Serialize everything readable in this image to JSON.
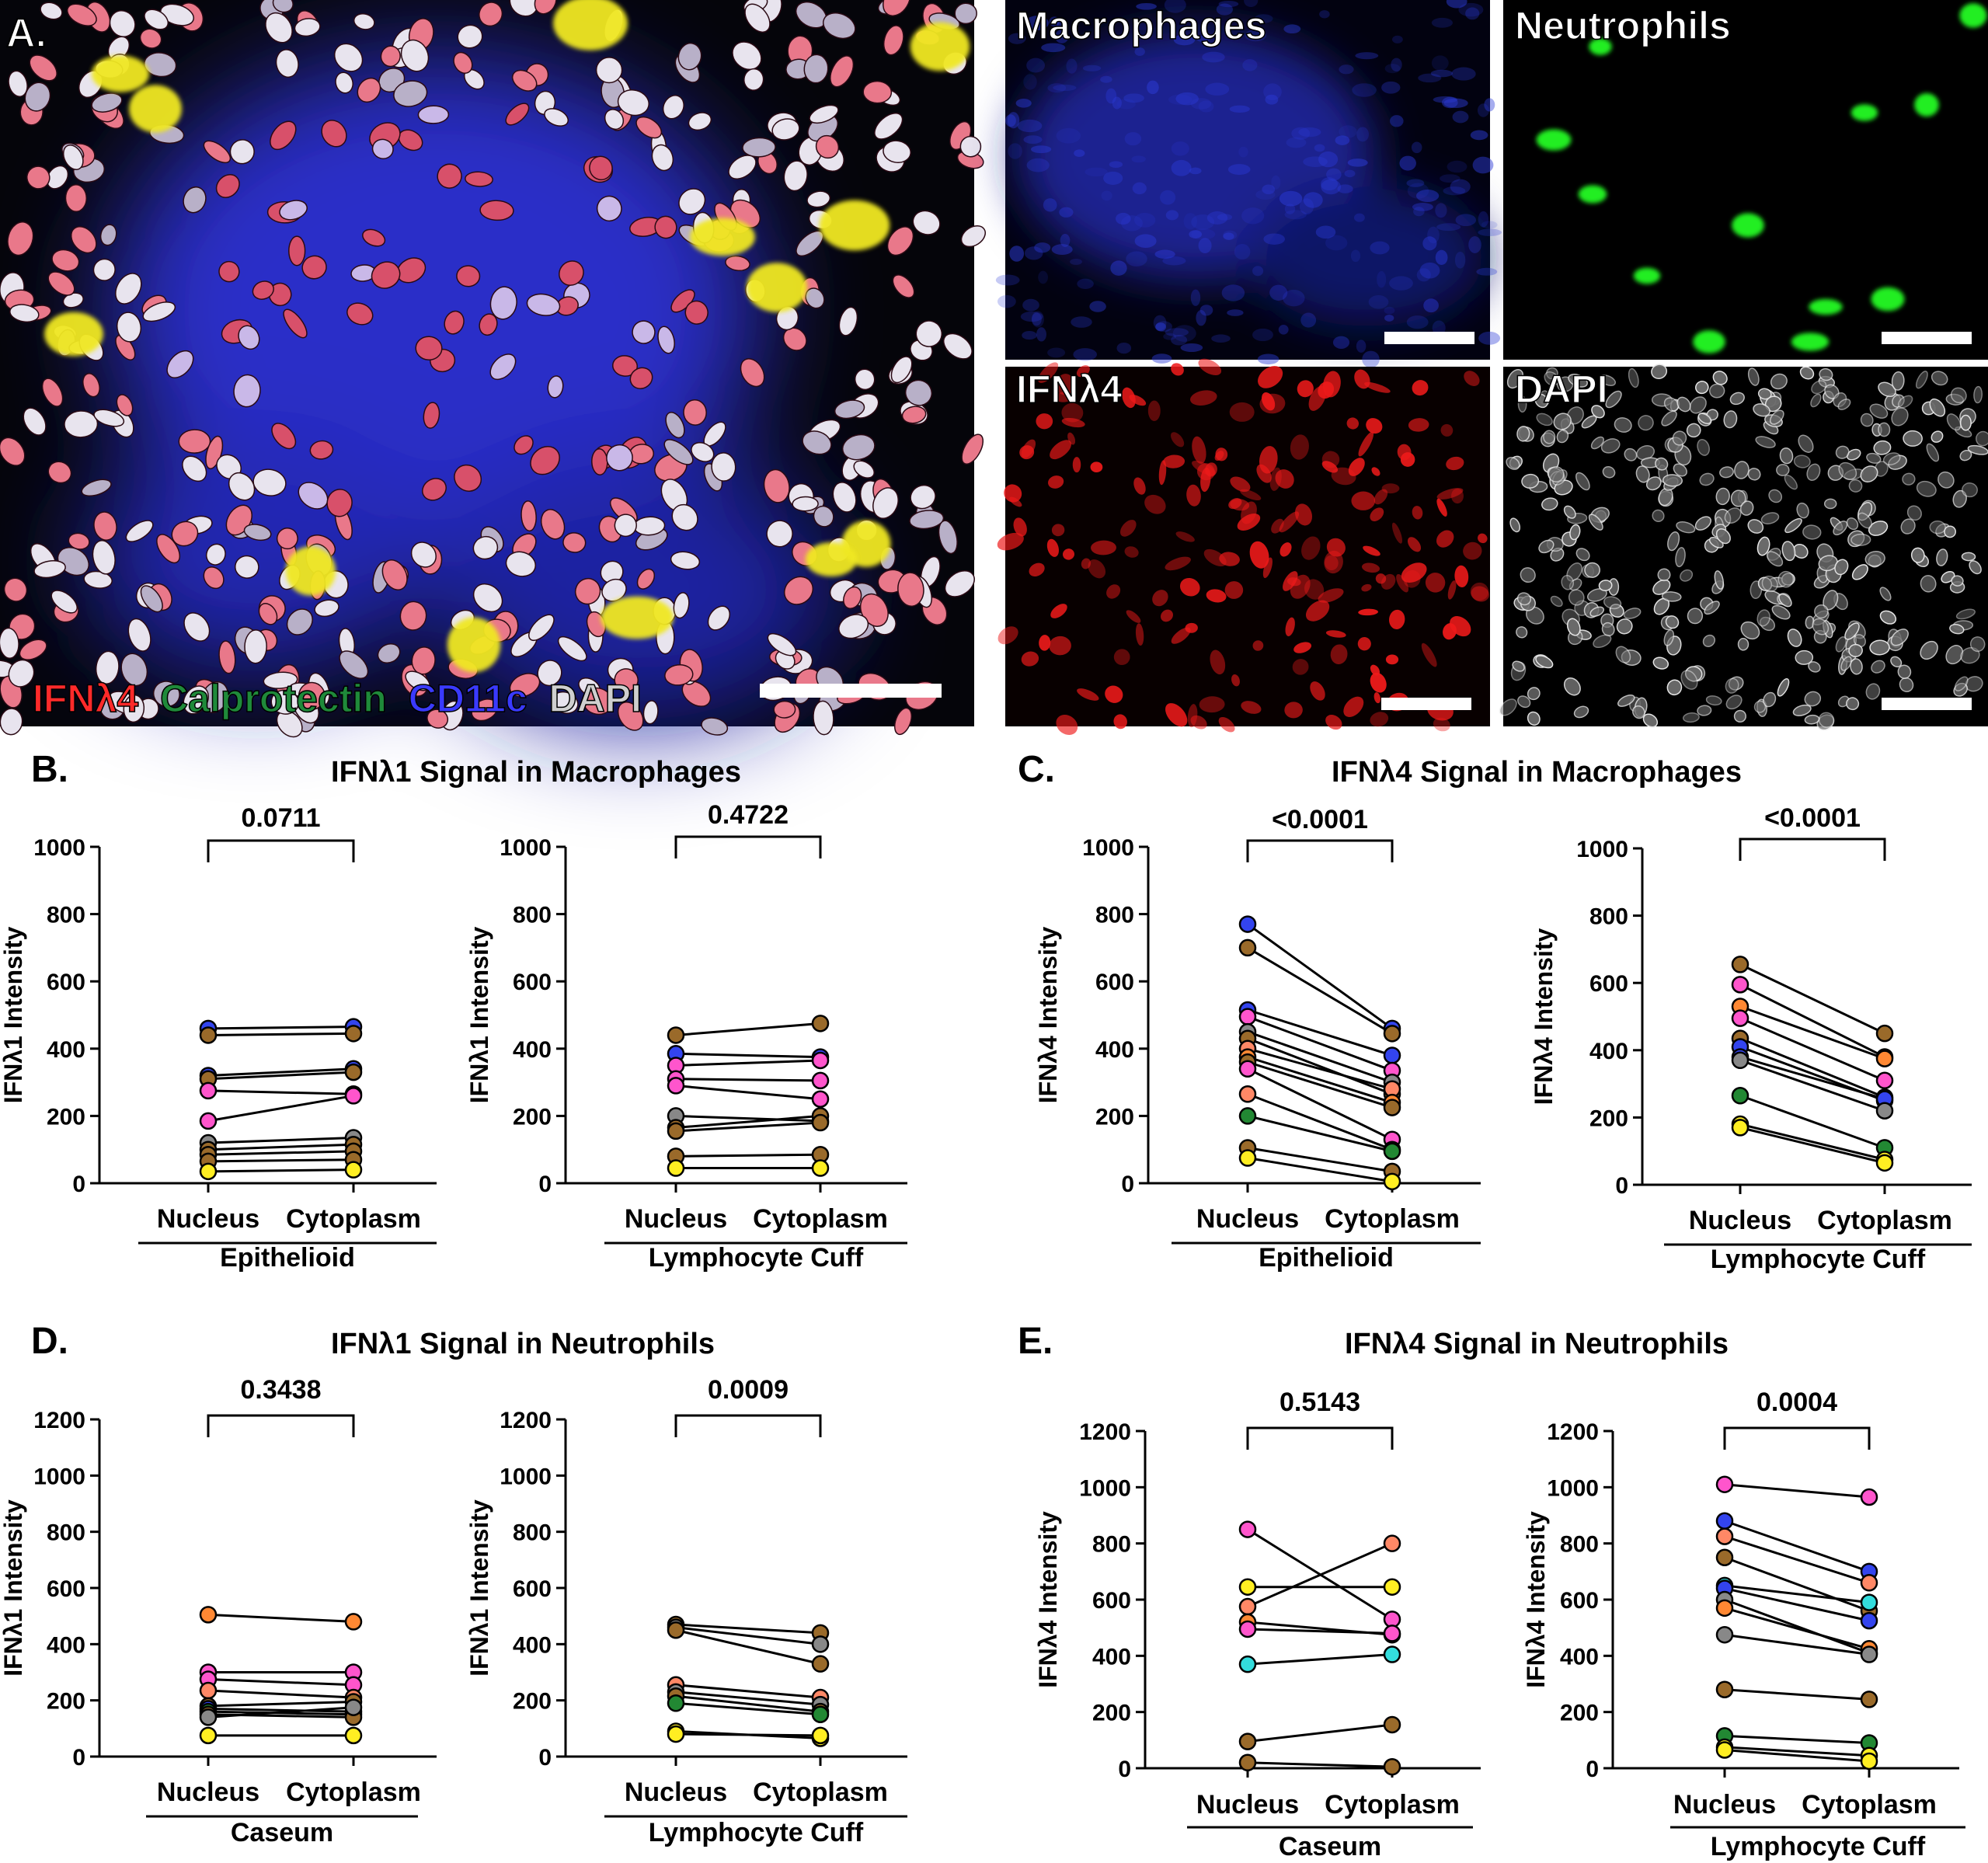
{
  "panel_a": {
    "letter": "A.",
    "legend": [
      {
        "text": "IFNλ4",
        "color": "#ff2a2a"
      },
      {
        "text": "Calprotectin",
        "color": "#1f8a3a"
      },
      {
        "text": "CD11c",
        "color": "#3a3aff"
      },
      {
        "text": "DAPI",
        "color": "#cfcfcf"
      }
    ],
    "channels": [
      {
        "label": "Macrophages",
        "color": "#2233cc"
      },
      {
        "label": "Neutrophils",
        "color": "#22dd22"
      },
      {
        "label": "IFNλ4",
        "color": "#ee1111"
      },
      {
        "label": "DAPI",
        "color": "#d8d8d8"
      }
    ]
  },
  "panels": [
    {
      "letter": "B.",
      "title": "IFNλ1 Signal in Macrophages"
    },
    {
      "letter": "C.",
      "title": "IFNλ4 Signal in Macrophages"
    },
    {
      "letter": "D.",
      "title": "IFNλ1 Signal in Neutrophils"
    },
    {
      "letter": "E.",
      "title": "IFNλ4 Signal in Neutrophils"
    }
  ],
  "chart_data": [
    {
      "type": "scatter",
      "panel": "B",
      "region": "Epithelioid",
      "ylabel": "IFNλ1 Intensity",
      "categories": [
        "Nucleus",
        "Cytoplasm"
      ],
      "ylim": [
        0,
        1000
      ],
      "yticks": [
        0,
        200,
        400,
        600,
        800,
        1000
      ],
      "p_value": "0.0711",
      "pairs": [
        {
          "color": "#3344ee",
          "values": [
            460,
            465
          ]
        },
        {
          "color": "#9a6a2a",
          "values": [
            440,
            445
          ]
        },
        {
          "color": "#3344ee",
          "values": [
            320,
            340
          ]
        },
        {
          "color": "#9a6a2a",
          "values": [
            310,
            330
          ]
        },
        {
          "color": "#ff55cc",
          "values": [
            275,
            265
          ]
        },
        {
          "color": "#ff55cc",
          "values": [
            185,
            260
          ]
        },
        {
          "color": "#888888",
          "values": [
            120,
            135
          ]
        },
        {
          "color": "#9a6a2a",
          "values": [
            100,
            115
          ]
        },
        {
          "color": "#9a6a2a",
          "values": [
            85,
            95
          ]
        },
        {
          "color": "#9a6a2a",
          "values": [
            65,
            70
          ]
        },
        {
          "color": "#ffee22",
          "values": [
            35,
            40
          ]
        }
      ]
    },
    {
      "type": "scatter",
      "panel": "B",
      "region": "Lymphocyte Cuff",
      "ylabel": "IFNλ1 Intensity",
      "categories": [
        "Nucleus",
        "Cytoplasm"
      ],
      "ylim": [
        0,
        1000
      ],
      "yticks": [
        0,
        200,
        400,
        600,
        800,
        1000
      ],
      "p_value": "0.4722",
      "pairs": [
        {
          "color": "#9a6a2a",
          "values": [
            440,
            475
          ]
        },
        {
          "color": "#3344ee",
          "values": [
            385,
            375
          ]
        },
        {
          "color": "#ff55cc",
          "values": [
            350,
            365
          ]
        },
        {
          "color": "#ff55cc",
          "values": [
            310,
            305
          ]
        },
        {
          "color": "#ff55cc",
          "values": [
            290,
            250
          ]
        },
        {
          "color": "#888888",
          "values": [
            200,
            185
          ]
        },
        {
          "color": "#9a6a2a",
          "values": [
            165,
            200
          ]
        },
        {
          "color": "#9a6a2a",
          "values": [
            155,
            180
          ]
        },
        {
          "color": "#9a6a2a",
          "values": [
            80,
            85
          ]
        },
        {
          "color": "#ffee22",
          "values": [
            45,
            45
          ]
        }
      ]
    },
    {
      "type": "scatter",
      "panel": "C",
      "region": "Epithelioid",
      "ylabel": "IFNλ4 Intensity",
      "categories": [
        "Nucleus",
        "Cytoplasm"
      ],
      "ylim": [
        0,
        1000
      ],
      "yticks": [
        0,
        200,
        400,
        600,
        800,
        1000
      ],
      "p_value": "<0.0001",
      "pairs": [
        {
          "color": "#3344ee",
          "values": [
            770,
            460
          ]
        },
        {
          "color": "#9a6a2a",
          "values": [
            700,
            445
          ]
        },
        {
          "color": "#3344ee",
          "values": [
            515,
            380
          ]
        },
        {
          "color": "#ff55cc",
          "values": [
            495,
            335
          ]
        },
        {
          "color": "#888888",
          "values": [
            450,
            300
          ]
        },
        {
          "color": "#9a6a2a",
          "values": [
            430,
            265
          ]
        },
        {
          "color": "#ff8866",
          "values": [
            400,
            280
          ]
        },
        {
          "color": "#ff8833",
          "values": [
            375,
            240
          ]
        },
        {
          "color": "#9a6a2a",
          "values": [
            360,
            225
          ]
        },
        {
          "color": "#ff55cc",
          "values": [
            340,
            130
          ]
        },
        {
          "color": "#ff8866",
          "values": [
            265,
            100
          ]
        },
        {
          "color": "#228833",
          "values": [
            200,
            95
          ]
        },
        {
          "color": "#9a6a2a",
          "values": [
            105,
            35
          ]
        },
        {
          "color": "#ffee22",
          "values": [
            75,
            5
          ]
        }
      ]
    },
    {
      "type": "scatter",
      "panel": "C",
      "region": "Lymphocyte Cuff",
      "ylabel": "IFNλ4 Intensity",
      "categories": [
        "Nucleus",
        "Cytoplasm"
      ],
      "ylim": [
        0,
        1000
      ],
      "yticks": [
        0,
        200,
        400,
        600,
        800,
        1000
      ],
      "p_value": "<0.0001",
      "pairs": [
        {
          "color": "#9a6a2a",
          "values": [
            655,
            450
          ]
        },
        {
          "color": "#ff55cc",
          "values": [
            595,
            380
          ]
        },
        {
          "color": "#ff8833",
          "values": [
            530,
            375
          ]
        },
        {
          "color": "#ff55cc",
          "values": [
            495,
            310
          ]
        },
        {
          "color": "#9a6a2a",
          "values": [
            435,
            260
          ]
        },
        {
          "color": "#3344ee",
          "values": [
            410,
            250
          ]
        },
        {
          "color": "#3344ee",
          "values": [
            380,
            255
          ]
        },
        {
          "color": "#888888",
          "values": [
            370,
            220
          ]
        },
        {
          "color": "#228833",
          "values": [
            265,
            110
          ]
        },
        {
          "color": "#ffee22",
          "values": [
            180,
            75
          ]
        },
        {
          "color": "#ffee22",
          "values": [
            170,
            65
          ]
        }
      ]
    },
    {
      "type": "scatter",
      "panel": "D",
      "region": "Caseum",
      "ylabel": "IFNλ1 Intensity",
      "categories": [
        "Nucleus",
        "Cytoplasm"
      ],
      "ylim": [
        0,
        1200
      ],
      "yticks": [
        0,
        200,
        400,
        600,
        800,
        1000,
        1200
      ],
      "p_value": "0.3438",
      "pairs": [
        {
          "color": "#ff8833",
          "values": [
            505,
            480
          ]
        },
        {
          "color": "#ff55cc",
          "values": [
            300,
            300
          ]
        },
        {
          "color": "#ff55cc",
          "values": [
            275,
            255
          ]
        },
        {
          "color": "#ff8866",
          "values": [
            235,
            210
          ]
        },
        {
          "color": "#9a6a2a",
          "values": [
            180,
            195
          ]
        },
        {
          "color": "#3344ee",
          "values": [
            170,
            160
          ]
        },
        {
          "color": "#228833",
          "values": [
            160,
            150
          ]
        },
        {
          "color": "#9a6a2a",
          "values": [
            150,
            140
          ]
        },
        {
          "color": "#888888",
          "values": [
            140,
            175
          ]
        },
        {
          "color": "#ffee22",
          "values": [
            75,
            75
          ]
        }
      ]
    },
    {
      "type": "scatter",
      "panel": "D",
      "region": "Lymphocyte Cuff",
      "ylabel": "IFNλ1 Intensity",
      "categories": [
        "Nucleus",
        "Cytoplasm"
      ],
      "ylim": [
        0,
        1200
      ],
      "yticks": [
        0,
        200,
        400,
        600,
        800,
        1000,
        1200
      ],
      "p_value": "0.0009",
      "pairs": [
        {
          "color": "#9a6a2a",
          "values": [
            470,
            440
          ]
        },
        {
          "color": "#888888",
          "values": [
            460,
            400
          ]
        },
        {
          "color": "#9a6a2a",
          "values": [
            450,
            330
          ]
        },
        {
          "color": "#ff8866",
          "values": [
            255,
            210
          ]
        },
        {
          "color": "#888888",
          "values": [
            230,
            185
          ]
        },
        {
          "color": "#9a6a2a",
          "values": [
            215,
            160
          ]
        },
        {
          "color": "#228833",
          "values": [
            190,
            150
          ]
        },
        {
          "color": "#ffee22",
          "values": [
            90,
            65
          ]
        },
        {
          "color": "#ffee22",
          "values": [
            80,
            75
          ]
        }
      ]
    },
    {
      "type": "scatter",
      "panel": "E",
      "region": "Caseum",
      "ylabel": "IFNλ4 Intensity",
      "categories": [
        "Nucleus",
        "Cytoplasm"
      ],
      "ylim": [
        0,
        1200
      ],
      "yticks": [
        0,
        200,
        400,
        600,
        800,
        1000,
        1200
      ],
      "p_value": "0.5143",
      "pairs": [
        {
          "color": "#ff55cc",
          "values": [
            850,
            530
          ]
        },
        {
          "color": "#ffee22",
          "values": [
            645,
            645
          ]
        },
        {
          "color": "#ff8866",
          "values": [
            575,
            800
          ]
        },
        {
          "color": "#ff8833",
          "values": [
            520,
            475
          ]
        },
        {
          "color": "#ff55cc",
          "values": [
            495,
            480
          ]
        },
        {
          "color": "#33dddd",
          "values": [
            370,
            405
          ]
        },
        {
          "color": "#9a6a2a",
          "values": [
            95,
            155
          ]
        },
        {
          "color": "#9a6a2a",
          "values": [
            20,
            5
          ]
        }
      ]
    },
    {
      "type": "scatter",
      "panel": "E",
      "region": "Lymphocyte Cuff",
      "ylabel": "IFNλ4 Intensity",
      "categories": [
        "Nucleus",
        "Cytoplasm"
      ],
      "ylim": [
        0,
        1200
      ],
      "yticks": [
        0,
        200,
        400,
        600,
        800,
        1000,
        1200
      ],
      "p_value": "0.0004",
      "pairs": [
        {
          "color": "#ff55cc",
          "values": [
            1010,
            965
          ]
        },
        {
          "color": "#3344ee",
          "values": [
            880,
            700
          ]
        },
        {
          "color": "#ff8866",
          "values": [
            825,
            660
          ]
        },
        {
          "color": "#9a6a2a",
          "values": [
            750,
            560
          ]
        },
        {
          "color": "#33dddd",
          "values": [
            650,
            590
          ]
        },
        {
          "color": "#3344ee",
          "values": [
            640,
            525
          ]
        },
        {
          "color": "#888888",
          "values": [
            600,
            410
          ]
        },
        {
          "color": "#ff8833",
          "values": [
            570,
            425
          ]
        },
        {
          "color": "#888888",
          "values": [
            475,
            405
          ]
        },
        {
          "color": "#9a6a2a",
          "values": [
            280,
            245
          ]
        },
        {
          "color": "#228833",
          "values": [
            115,
            90
          ]
        },
        {
          "color": "#ffee22",
          "values": [
            75,
            45
          ]
        },
        {
          "color": "#ffee22",
          "values": [
            65,
            25
          ]
        }
      ]
    }
  ]
}
